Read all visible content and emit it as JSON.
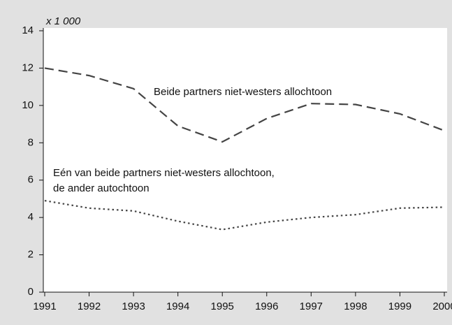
{
  "chart_data": {
    "type": "line",
    "axis_note": "x 1 000",
    "x": [
      1991,
      1992,
      1993,
      1994,
      1995,
      1996,
      1997,
      1998,
      1999,
      2000
    ],
    "xlim": [
      1991,
      2000
    ],
    "xticks": [
      1991,
      1992,
      1993,
      1994,
      1995,
      1996,
      1997,
      1998,
      1999,
      2000
    ],
    "ylim": [
      0,
      14
    ],
    "yticks": [
      0,
      2,
      4,
      6,
      8,
      10,
      12,
      14
    ],
    "series": [
      {
        "label": [
          "Beide partners niet-westers allochtoon"
        ],
        "color": "#444444",
        "dash": "dashed",
        "values": [
          12.0,
          11.6,
          10.9,
          8.9,
          8.05,
          9.3,
          10.1,
          10.05,
          9.55,
          8.65
        ]
      },
      {
        "label": [
          "Eén van beide partners niet-westers allochtoon,",
          "de ander autochtoon"
        ],
        "color": "#444444",
        "dash": "dotted",
        "values": [
          4.9,
          4.5,
          4.35,
          3.8,
          3.35,
          3.75,
          4.0,
          4.15,
          4.5,
          4.55
        ]
      }
    ]
  }
}
